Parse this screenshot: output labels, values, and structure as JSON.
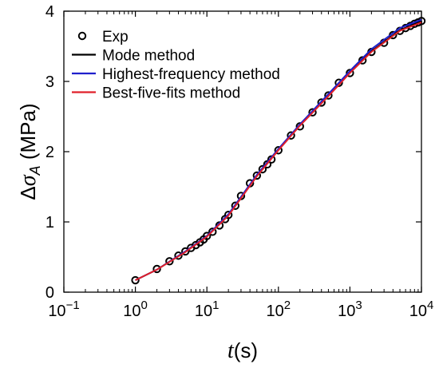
{
  "chart_data": {
    "type": "line",
    "xscale": "log",
    "xlim": [
      0.1,
      10000
    ],
    "ylim": [
      0,
      4
    ],
    "x_ticks": [
      {
        "value": 0.1,
        "base": "10",
        "exp": "−1"
      },
      {
        "value": 1,
        "base": "10",
        "exp": "0"
      },
      {
        "value": 10,
        "base": "10",
        "exp": "1"
      },
      {
        "value": 100,
        "base": "10",
        "exp": "2"
      },
      {
        "value": 1000,
        "base": "10",
        "exp": "3"
      },
      {
        "value": 10000,
        "base": "10",
        "exp": "4"
      }
    ],
    "y_ticks": [
      "0",
      "1",
      "2",
      "3",
      "4"
    ],
    "xlabel": {
      "italic": "t",
      "rest": "(s)"
    },
    "ylabel": {
      "prefix": "Δ",
      "italic": "σ",
      "sub": "A",
      "rest": "(MPa)"
    },
    "grid": false,
    "legend_position": "top-left",
    "legend": [
      {
        "label": "Exp",
        "kind": "marker",
        "color": "#000000"
      },
      {
        "label": "Mode method",
        "kind": "line",
        "color": "#000000"
      },
      {
        "label": "Highest-frequency method",
        "kind": "line",
        "color": "#1f1fcc"
      },
      {
        "label": "Best-five-fits method",
        "kind": "line",
        "color": "#e0202a"
      }
    ],
    "series": [
      {
        "name": "Exp",
        "kind": "scatter",
        "color": "#000000",
        "x": [
          1,
          2,
          3,
          4,
          5,
          6,
          7,
          8,
          9,
          10,
          12,
          15,
          18,
          20,
          25,
          30,
          40,
          50,
          60,
          70,
          80,
          100,
          150,
          200,
          300,
          400,
          500,
          700,
          1000,
          1500,
          2000,
          3000,
          4000,
          5000,
          6000,
          7000,
          8000,
          9000,
          10000
        ],
        "y": [
          0.17,
          0.33,
          0.44,
          0.52,
          0.58,
          0.63,
          0.67,
          0.71,
          0.75,
          0.8,
          0.86,
          0.95,
          1.04,
          1.1,
          1.23,
          1.37,
          1.55,
          1.66,
          1.75,
          1.82,
          1.89,
          2.02,
          2.23,
          2.36,
          2.56,
          2.7,
          2.8,
          2.98,
          3.12,
          3.3,
          3.42,
          3.55,
          3.66,
          3.72,
          3.76,
          3.79,
          3.82,
          3.84,
          3.86
        ]
      },
      {
        "name": "Mode method",
        "kind": "line",
        "color": "#000000",
        "x": [
          1,
          2,
          5,
          10,
          20,
          50,
          100,
          200,
          500,
          1000,
          2000,
          5000,
          10000
        ],
        "y": [
          0.17,
          0.32,
          0.58,
          0.8,
          1.1,
          1.66,
          2.03,
          2.38,
          2.8,
          3.13,
          3.43,
          3.73,
          3.86
        ]
      },
      {
        "name": "Highest-frequency method",
        "kind": "line",
        "color": "#1f1fcc",
        "x": [
          1,
          2,
          5,
          10,
          20,
          50,
          100,
          200,
          500,
          1000,
          2000,
          5000,
          10000
        ],
        "y": [
          0.17,
          0.32,
          0.58,
          0.8,
          1.11,
          1.67,
          2.04,
          2.39,
          2.82,
          3.15,
          3.46,
          3.76,
          3.88
        ]
      },
      {
        "name": "Best-five-fits method",
        "kind": "line",
        "color": "#e0202a",
        "x": [
          1,
          2,
          5,
          10,
          20,
          50,
          100,
          200,
          500,
          1000,
          2000,
          5000,
          10000
        ],
        "y": [
          0.17,
          0.32,
          0.57,
          0.79,
          1.09,
          1.65,
          2.02,
          2.37,
          2.79,
          3.12,
          3.42,
          3.72,
          3.84
        ]
      }
    ]
  }
}
